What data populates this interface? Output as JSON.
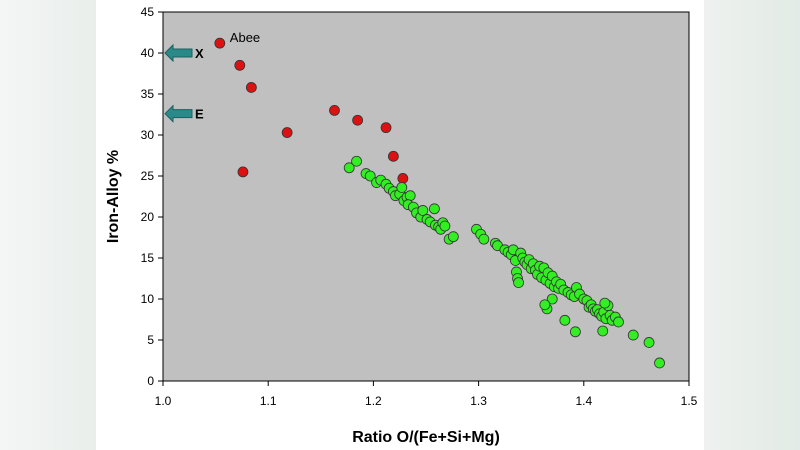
{
  "chart_data": {
    "type": "scatter",
    "title": "",
    "xlabel": "Ratio O/(Fe+Si+Mg)",
    "ylabel": "Iron-Alloy %",
    "xlim": [
      1.0,
      1.5
    ],
    "ylim": [
      0,
      45
    ],
    "xticks": [
      "1.0",
      "1.1",
      "1.2",
      "1.3",
      "1.4",
      "1.5"
    ],
    "yticks": [
      "0",
      "5",
      "10",
      "15",
      "20",
      "25",
      "30",
      "35",
      "40",
      "45"
    ],
    "colors": {
      "background": "#c0c0c0",
      "red": "#dd1111",
      "green": "#33ee22",
      "arrow": "#2a8a8a"
    },
    "series": [
      {
        "name": "red",
        "points": [
          [
            1.054,
            41.2
          ],
          [
            1.073,
            38.5
          ],
          [
            1.084,
            35.8
          ],
          [
            1.076,
            25.5
          ],
          [
            1.118,
            30.3
          ],
          [
            1.163,
            33.0
          ],
          [
            1.185,
            31.8
          ],
          [
            1.212,
            30.9
          ],
          [
            1.219,
            27.4
          ],
          [
            1.228,
            24.7
          ]
        ]
      },
      {
        "name": "green",
        "points": [
          [
            1.177,
            26.0
          ],
          [
            1.184,
            26.8
          ],
          [
            1.193,
            25.3
          ],
          [
            1.197,
            25.0
          ],
          [
            1.203,
            24.2
          ],
          [
            1.207,
            24.5
          ],
          [
            1.212,
            24.0
          ],
          [
            1.215,
            23.5
          ],
          [
            1.219,
            23.1
          ],
          [
            1.221,
            22.6
          ],
          [
            1.225,
            22.8
          ],
          [
            1.227,
            23.6
          ],
          [
            1.229,
            22.0
          ],
          [
            1.232,
            22.4
          ],
          [
            1.235,
            22.6
          ],
          [
            1.233,
            21.5
          ],
          [
            1.238,
            21.2
          ],
          [
            1.241,
            20.5
          ],
          [
            1.245,
            20.0
          ],
          [
            1.247,
            20.8
          ],
          [
            1.251,
            19.7
          ],
          [
            1.254,
            19.4
          ],
          [
            1.258,
            21.0
          ],
          [
            1.259,
            19.0
          ],
          [
            1.262,
            18.8
          ],
          [
            1.264,
            18.5
          ],
          [
            1.266,
            19.3
          ],
          [
            1.268,
            18.9
          ],
          [
            1.272,
            17.3
          ],
          [
            1.276,
            17.6
          ],
          [
            1.298,
            18.5
          ],
          [
            1.302,
            17.9
          ],
          [
            1.305,
            17.3
          ],
          [
            1.316,
            16.8
          ],
          [
            1.318,
            16.5
          ],
          [
            1.325,
            16.0
          ],
          [
            1.328,
            15.7
          ],
          [
            1.331,
            15.4
          ],
          [
            1.333,
            16.0
          ],
          [
            1.335,
            14.7
          ],
          [
            1.336,
            13.3
          ],
          [
            1.337,
            12.5
          ],
          [
            1.338,
            12.0
          ],
          [
            1.34,
            15.6
          ],
          [
            1.342,
            15.0
          ],
          [
            1.344,
            14.5
          ],
          [
            1.346,
            14.2
          ],
          [
            1.348,
            14.8
          ],
          [
            1.35,
            13.7
          ],
          [
            1.352,
            14.3
          ],
          [
            1.354,
            13.5
          ],
          [
            1.356,
            13.0
          ],
          [
            1.358,
            14.0
          ],
          [
            1.36,
            12.6
          ],
          [
            1.362,
            13.8
          ],
          [
            1.364,
            12.3
          ],
          [
            1.366,
            13.2
          ],
          [
            1.368,
            11.9
          ],
          [
            1.37,
            12.8
          ],
          [
            1.372,
            11.5
          ],
          [
            1.374,
            12.1
          ],
          [
            1.376,
            11.3
          ],
          [
            1.378,
            11.8
          ],
          [
            1.381,
            11.1
          ],
          [
            1.385,
            10.8
          ],
          [
            1.388,
            10.5
          ],
          [
            1.391,
            10.3
          ],
          [
            1.393,
            11.4
          ],
          [
            1.396,
            10.6
          ],
          [
            1.4,
            10.0
          ],
          [
            1.403,
            9.8
          ],
          [
            1.405,
            9.0
          ],
          [
            1.407,
            9.3
          ],
          [
            1.409,
            8.8
          ],
          [
            1.411,
            8.5
          ],
          [
            1.413,
            8.7
          ],
          [
            1.415,
            8.2
          ],
          [
            1.417,
            7.9
          ],
          [
            1.419,
            8.4
          ],
          [
            1.421,
            7.6
          ],
          [
            1.423,
            9.2
          ],
          [
            1.425,
            8.0
          ],
          [
            1.427,
            7.4
          ],
          [
            1.43,
            7.8
          ],
          [
            1.433,
            7.2
          ],
          [
            1.418,
            6.1
          ],
          [
            1.392,
            6.0
          ],
          [
            1.382,
            7.4
          ],
          [
            1.365,
            8.8
          ],
          [
            1.37,
            10.0
          ],
          [
            1.363,
            9.3
          ],
          [
            1.42,
            9.5
          ],
          [
            1.447,
            5.6
          ],
          [
            1.462,
            4.7
          ],
          [
            1.472,
            2.2
          ]
        ]
      }
    ],
    "annotations": [
      {
        "text": "Abee",
        "x": 1.054,
        "y": 41.2
      }
    ],
    "side_markers": [
      {
        "label": "X",
        "y": 40.0
      },
      {
        "label": "E",
        "y": 32.6
      }
    ]
  }
}
